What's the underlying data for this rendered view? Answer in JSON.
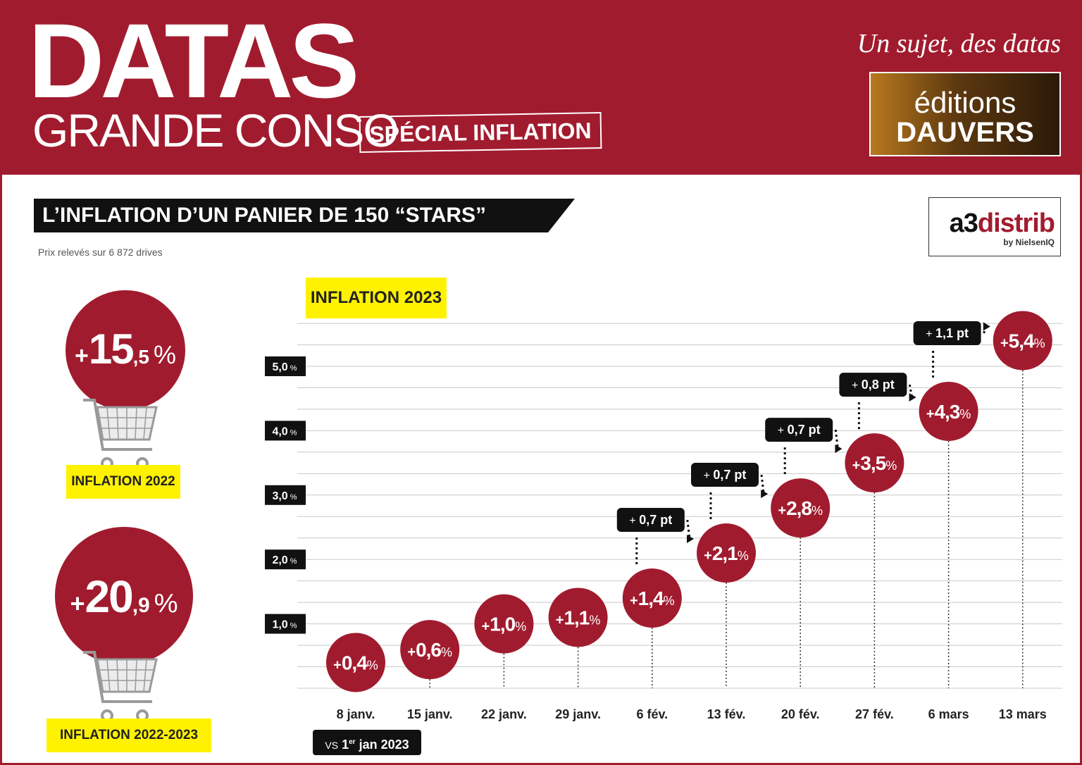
{
  "header": {
    "brand_big": "DATAS",
    "brand_sub": "GRANDE CONSO",
    "special": "SPÉCIAL INFLATION",
    "tagline": "Un sujet, des datas",
    "publisher_line1": "éditions",
    "publisher_line2": "DAUVERS"
  },
  "section": {
    "title": "L’INFLATION D’UN PANIER DE 150 “STARS”",
    "note": "Prix relevés sur 6 872 drives",
    "source_logo_a": "a3",
    "source_logo_b": "distrib",
    "source_logo_sub": "by NielsenIQ"
  },
  "left_panel": {
    "kpi_2022": {
      "sign": "+",
      "int": "15",
      "dec": ",5",
      "unit": "%",
      "label": "INFLATION 2022"
    },
    "kpi_2022_2023": {
      "sign": "+",
      "int": "20",
      "dec": ",9",
      "unit": "%",
      "label": "INFLATION 2022-2023"
    }
  },
  "chart_data": {
    "type": "line",
    "title": "INFLATION 2023",
    "ylim": [
      0,
      6
    ],
    "y_ticks": [
      1.0,
      2.0,
      3.0,
      4.0,
      5.0
    ],
    "y_tick_labels": [
      "1,0",
      "2,0",
      "3,0",
      "4,0",
      "5,0"
    ],
    "y_unit": "%",
    "categories": [
      "8 janv.",
      "15 janv.",
      "22 janv.",
      "29 janv.",
      "6 fév.",
      "13 fév.",
      "20 fév.",
      "27 fév.",
      "6 mars",
      "13 mars"
    ],
    "values": [
      0.4,
      0.6,
      1.0,
      1.1,
      1.4,
      2.1,
      2.8,
      3.5,
      4.3,
      5.4
    ],
    "value_labels": [
      "0,4",
      "0,6",
      "1,0",
      "1,1",
      "1,4",
      "2,1",
      "2,8",
      "3,5",
      "4,3",
      "5,4"
    ],
    "value_prefix": "+",
    "deltas": [
      {
        "from": "6 fév.",
        "to": "13 fév.",
        "label": "0,7 pt"
      },
      {
        "from": "13 fév.",
        "to": "20 fév.",
        "label": "0,7 pt"
      },
      {
        "from": "20 fév.",
        "to": "27 fév.",
        "label": "0,7 pt"
      },
      {
        "from": "27 fév.",
        "to": "6 mars",
        "label": "0,8 pt"
      },
      {
        "from": "6 mars",
        "to": "13 mars",
        "label": "1,1 pt"
      }
    ],
    "delta_prefix": "+",
    "baseline_note": {
      "prefix": "VS",
      "day": "1",
      "sup": "er",
      "rest": "jan 2023"
    },
    "grid": true
  },
  "colors": {
    "brand_red": "#a11b2e",
    "accent_yellow": "#fff200",
    "dark": "#111111",
    "grid": "#c8c8c8"
  }
}
